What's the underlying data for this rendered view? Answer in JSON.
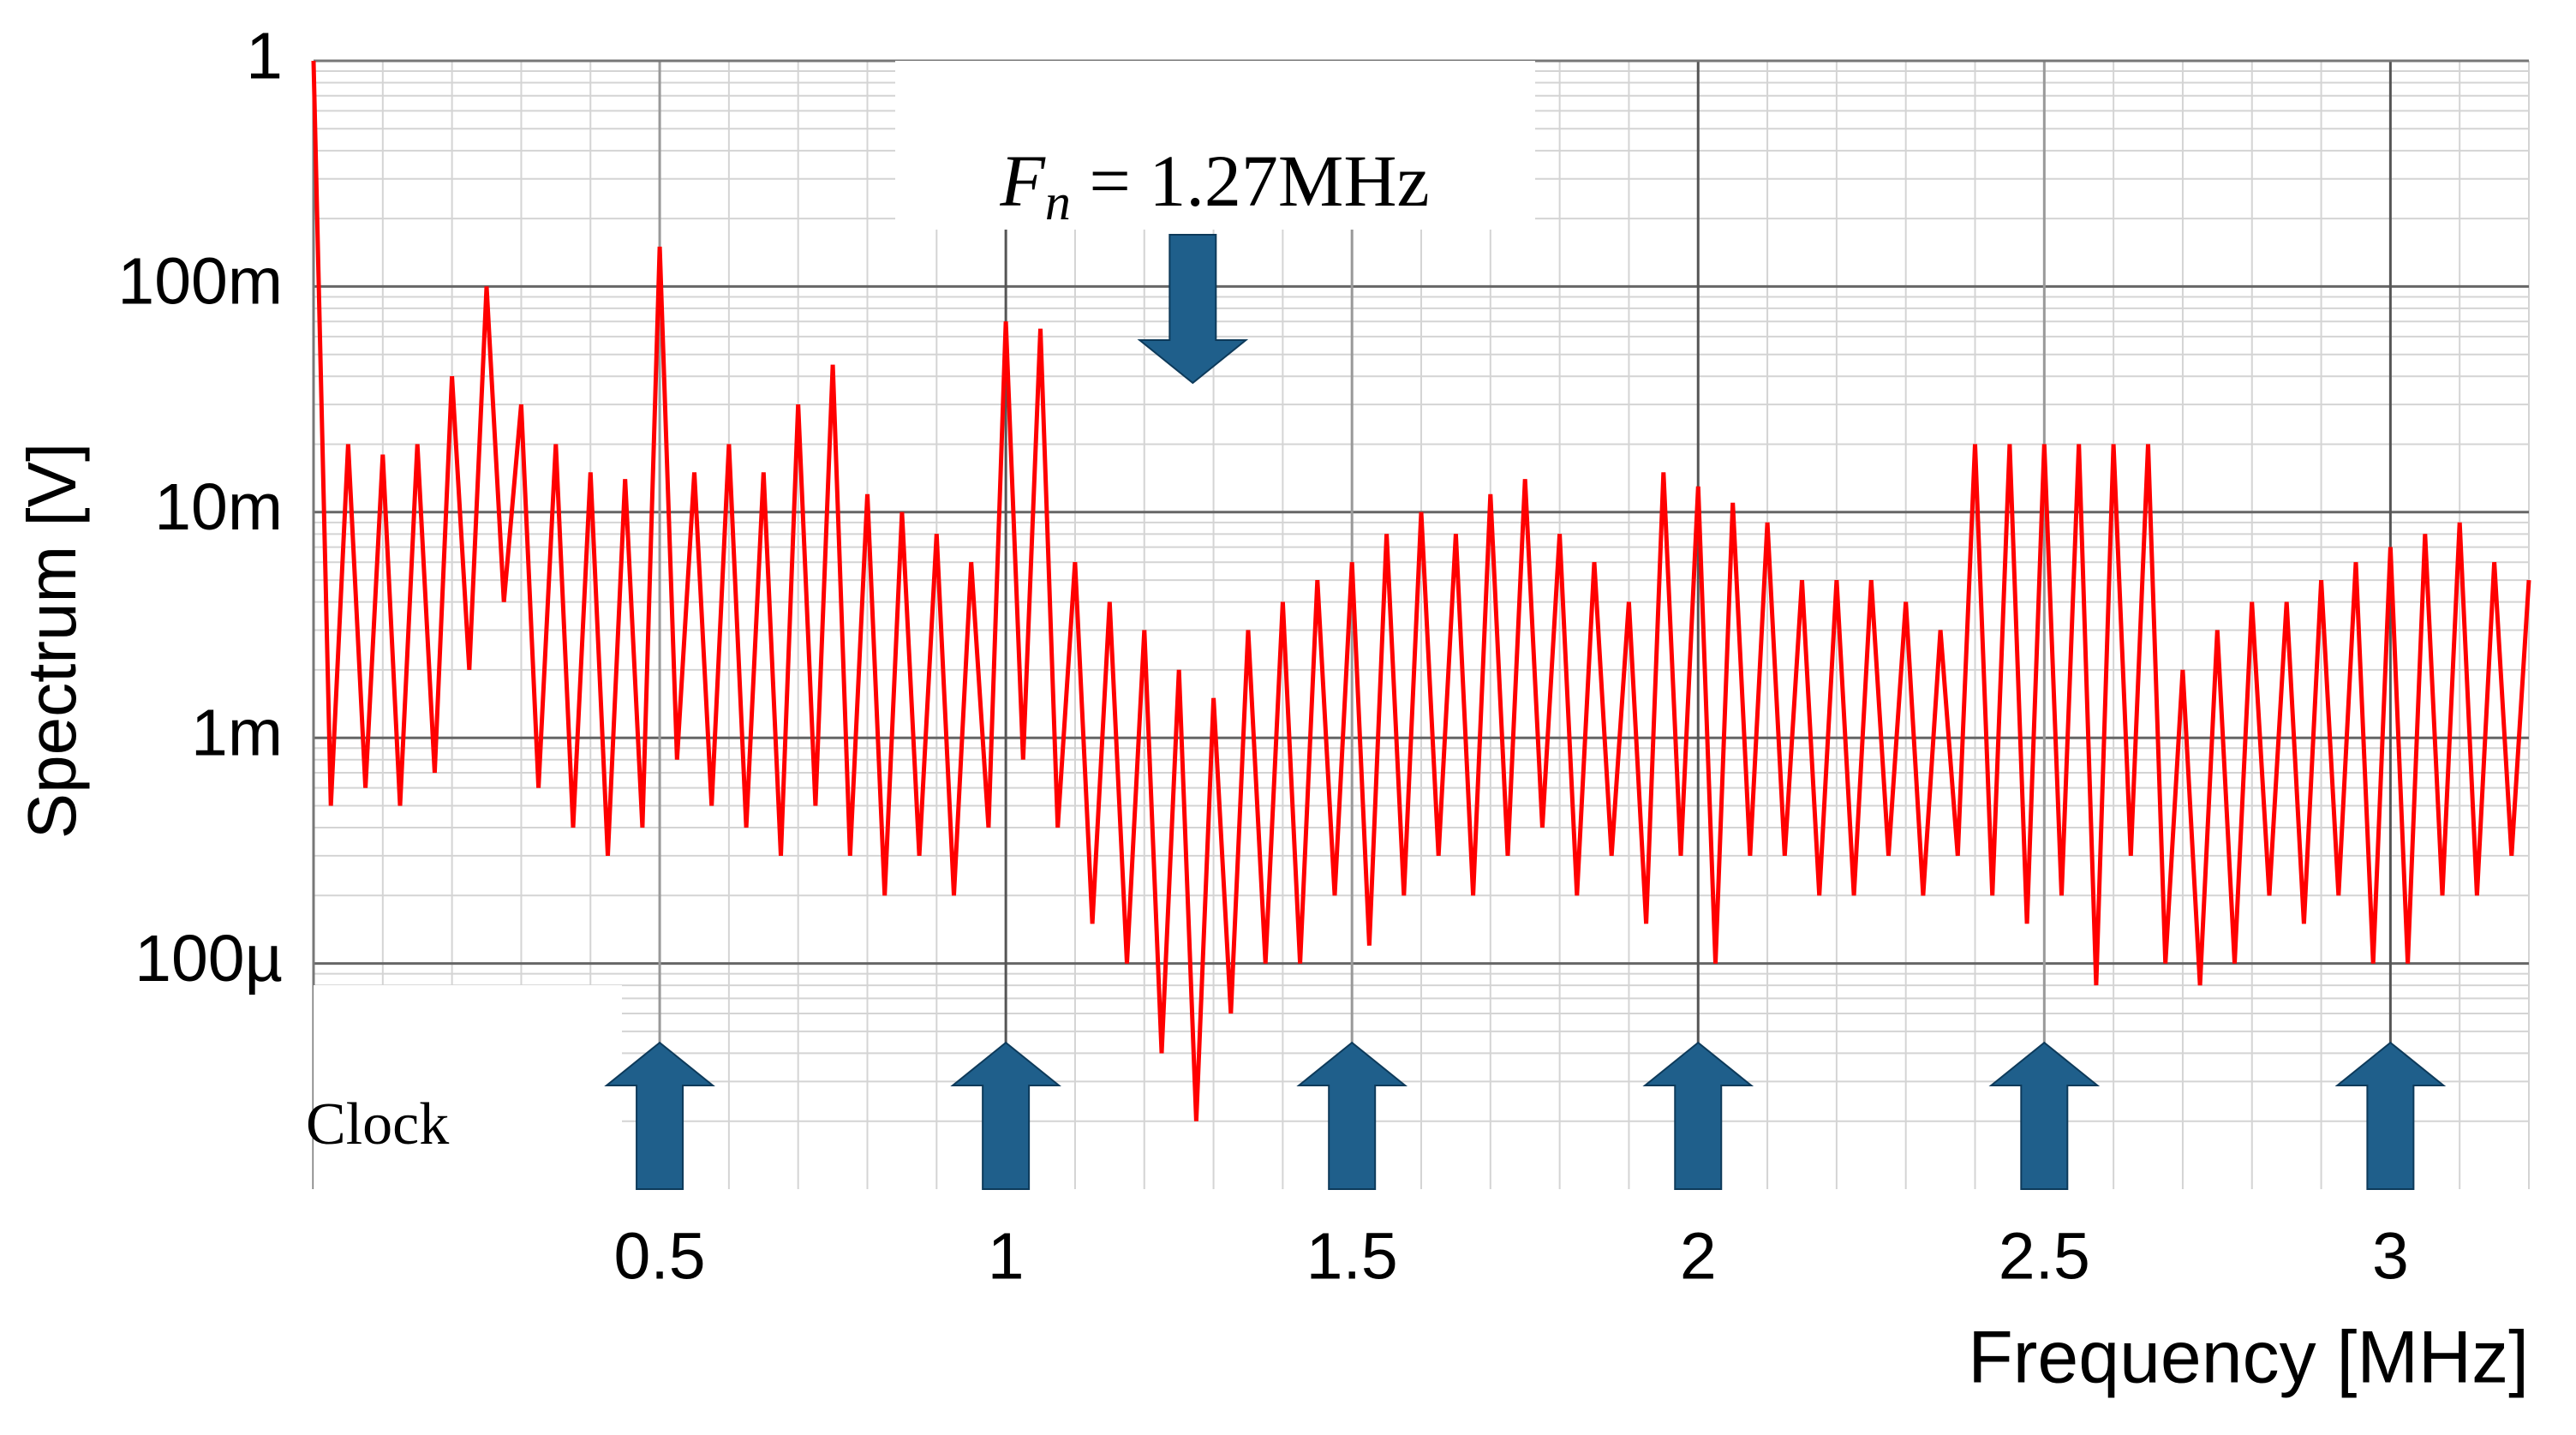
{
  "chart_data": {
    "type": "line",
    "y_label": "Spectrum [V]",
    "x_label": "Frequency [MHz]",
    "log_y": true,
    "grid": true,
    "minor_grid": true,
    "ylim": [
      1e-05,
      1
    ],
    "yticks": [
      1,
      {
        "value": 0.1,
        "label": "100m"
      },
      {
        "value": 0.01,
        "label": "10m"
      },
      {
        "value": 0.001,
        "label": "1m"
      },
      {
        "value": 0.0001,
        "label": "100µ"
      }
    ],
    "xlim": [
      0,
      3.2
    ],
    "xticks": [
      0.5,
      1,
      1.5,
      2,
      2.5,
      3
    ],
    "x": [
      0,
      0.025,
      0.05,
      0.075,
      0.1,
      0.125,
      0.15,
      0.175,
      0.2,
      0.225,
      0.25,
      0.275,
      0.3,
      0.325,
      0.35,
      0.375,
      0.4,
      0.425,
      0.45,
      0.475,
      0.5,
      0.525,
      0.55,
      0.575,
      0.6,
      0.625,
      0.65,
      0.675,
      0.7,
      0.725,
      0.75,
      0.775,
      0.8,
      0.825,
      0.85,
      0.875,
      0.9,
      0.925,
      0.95,
      0.975,
      1,
      1.025,
      1.05,
      1.075,
      1.1,
      1.125,
      1.15,
      1.175,
      1.2,
      1.225,
      1.25,
      1.275,
      1.3,
      1.325,
      1.35,
      1.375,
      1.4,
      1.425,
      1.45,
      1.475,
      1.5,
      1.525,
      1.55,
      1.575,
      1.6,
      1.625,
      1.65,
      1.675,
      1.7,
      1.725,
      1.75,
      1.775,
      1.8,
      1.825,
      1.85,
      1.875,
      1.9,
      1.925,
      1.95,
      1.975,
      2,
      2.025,
      2.05,
      2.075,
      2.1,
      2.125,
      2.15,
      2.175,
      2.2,
      2.225,
      2.25,
      2.275,
      2.3,
      2.325,
      2.35,
      2.375,
      2.4,
      2.425,
      2.45,
      2.475,
      2.5,
      2.525,
      2.55,
      2.575,
      2.6,
      2.625,
      2.65,
      2.675,
      2.7,
      2.725,
      2.75,
      2.775,
      2.8,
      2.825,
      2.85,
      2.875,
      2.9,
      2.925,
      2.95,
      2.975,
      3,
      3.025,
      3.05,
      3.075,
      3.1,
      3.125,
      3.15,
      3.175,
      3.2
    ],
    "series": [
      {
        "color": "#ff0000",
        "values": [
          1,
          0.0005,
          0.02,
          0.0006,
          0.018,
          0.0005,
          0.02,
          0.0007,
          0.04,
          0.002,
          0.1,
          0.004,
          0.03,
          0.0006,
          0.02,
          0.0004,
          0.015,
          0.0003,
          0.014,
          0.0004,
          0.15,
          0.0008,
          0.015,
          0.0005,
          0.02,
          0.0004,
          0.015,
          0.0003,
          0.03,
          0.0005,
          0.045,
          0.0003,
          0.012,
          0.0002,
          0.01,
          0.0003,
          0.008,
          0.0002,
          0.006,
          0.0004,
          0.07,
          0.0008,
          0.065,
          0.0004,
          0.006,
          0.00015,
          0.004,
          0.0001,
          0.003,
          4e-05,
          0.002,
          2e-05,
          0.0015,
          6e-05,
          0.003,
          0.0001,
          0.004,
          0.0001,
          0.005,
          0.0002,
          0.006,
          0.00012,
          0.008,
          0.0002,
          0.01,
          0.0003,
          0.008,
          0.0002,
          0.012,
          0.0003,
          0.014,
          0.0004,
          0.008,
          0.0002,
          0.006,
          0.0003,
          0.004,
          0.00015,
          0.015,
          0.0003,
          0.013,
          0.0001,
          0.011,
          0.0003,
          0.009,
          0.0003,
          0.005,
          0.0002,
          0.005,
          0.0002,
          0.005,
          0.0003,
          0.004,
          0.0002,
          0.003,
          0.0003,
          0.02,
          0.0002,
          0.02,
          0.00015,
          0.02,
          0.0002,
          0.02,
          8e-05,
          0.02,
          0.0003,
          0.02,
          0.0001,
          0.002,
          8e-05,
          0.003,
          0.0001,
          0.004,
          0.0002,
          0.004,
          0.00015,
          0.005,
          0.0002,
          0.006,
          0.0001,
          0.007,
          0.0001,
          0.008,
          0.0002,
          0.009,
          0.0002,
          0.006,
          0.0003,
          0.005
        ]
      }
    ],
    "annotations": {
      "fn": {
        "symbol": "F",
        "subscript": "n",
        "text": " = 1.27MHz",
        "x": 1.27
      },
      "clock": {
        "label": "Clock",
        "x": [
          0.5,
          1,
          1.5,
          2,
          2.5,
          3
        ]
      },
      "arrow_color": "#1f5f8b"
    }
  }
}
